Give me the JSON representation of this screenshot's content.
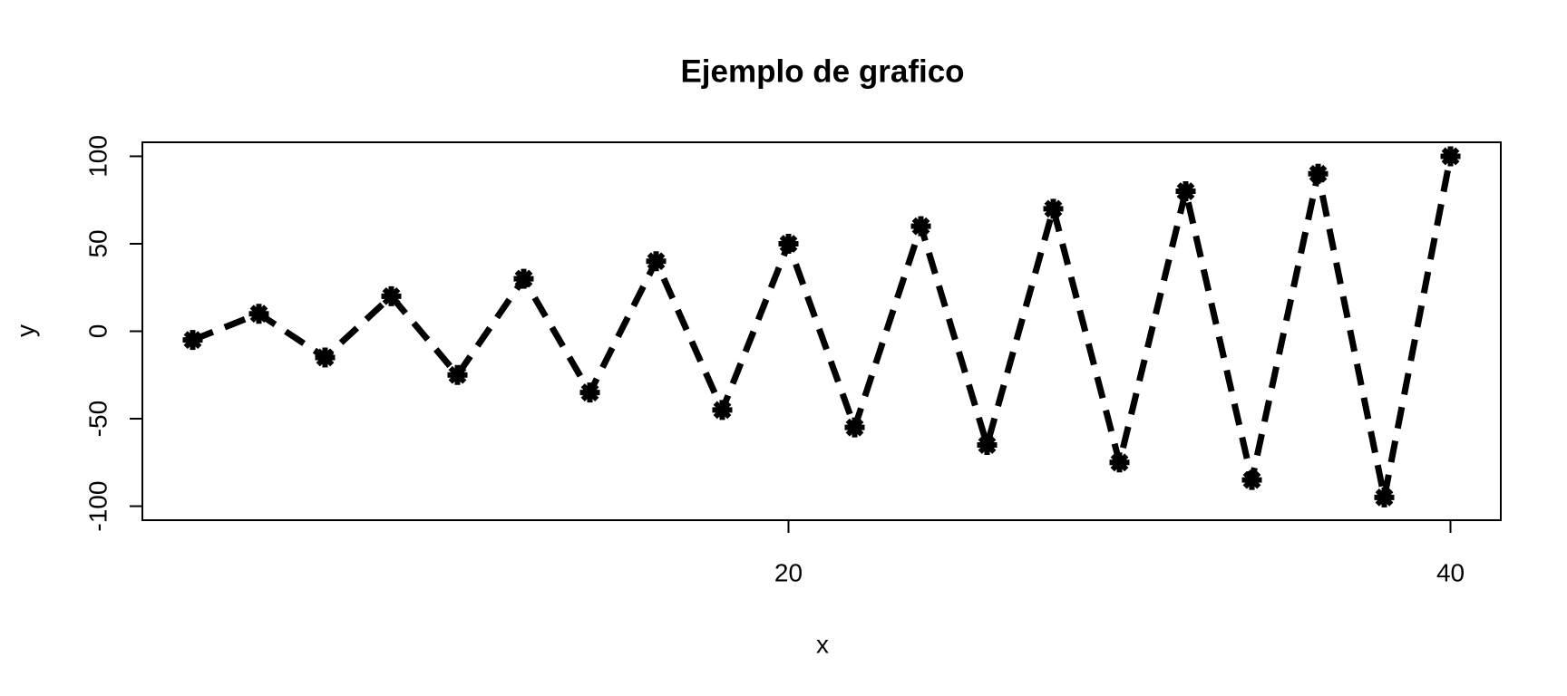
{
  "chart_data": {
    "type": "line",
    "title": "Ejemplo de grafico",
    "x_label": "x",
    "y_label": "y",
    "x": [
      2,
      4,
      6,
      8,
      10,
      12,
      14,
      16,
      18,
      20,
      22,
      24,
      26,
      28,
      30,
      32,
      34,
      36,
      38,
      40
    ],
    "values": [
      -5,
      10,
      -15,
      20,
      -25,
      30,
      -35,
      40,
      -45,
      50,
      -55,
      60,
      -65,
      70,
      -75,
      80,
      -85,
      90,
      -95,
      100
    ],
    "color": "#000000",
    "line_style": "dashed",
    "markers": true,
    "xlim": [
      0.48,
      41.52
    ],
    "ylim": [
      -108,
      108
    ],
    "xticks": [
      20,
      40
    ],
    "yticks": [
      -100,
      -50,
      0,
      50,
      100
    ]
  }
}
